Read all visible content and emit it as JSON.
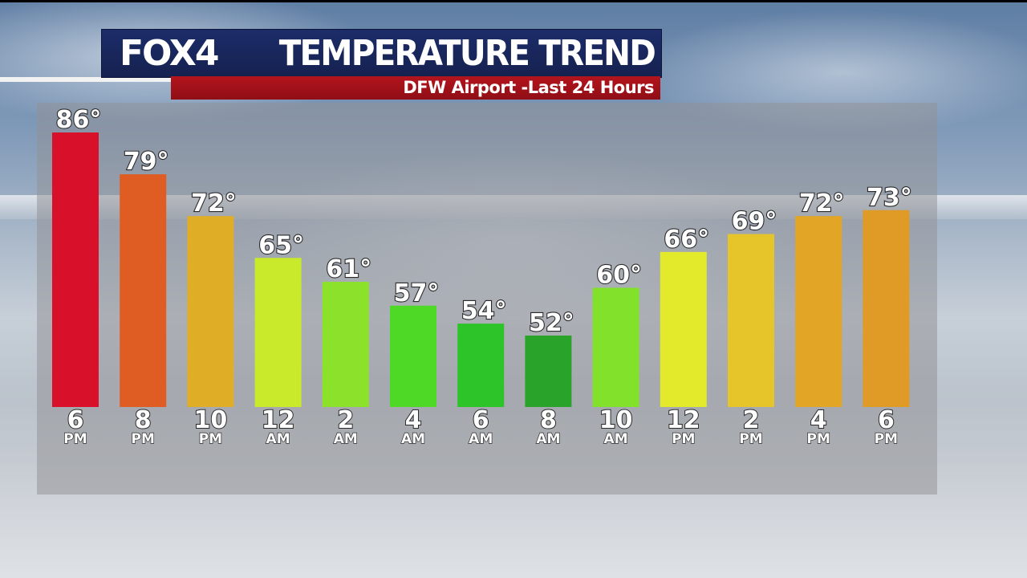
{
  "header": {
    "logo": "FOX4",
    "title": "TEMPERATURE TREND",
    "subtitle": "DFW Airport -Last 24 Hours"
  },
  "colors": {
    "title_bg": "#17235a",
    "subtitle_bg": "#a3111a"
  },
  "chart_data": {
    "type": "bar",
    "title": "TEMPERATURE TREND",
    "subtitle": "DFW Airport -Last 24 Hours",
    "unit": "°",
    "categories": [
      {
        "hour": "6",
        "ampm": "PM"
      },
      {
        "hour": "8",
        "ampm": "PM"
      },
      {
        "hour": "10",
        "ampm": "PM"
      },
      {
        "hour": "12",
        "ampm": "AM"
      },
      {
        "hour": "2",
        "ampm": "AM"
      },
      {
        "hour": "4",
        "ampm": "AM"
      },
      {
        "hour": "6",
        "ampm": "AM"
      },
      {
        "hour": "8",
        "ampm": "AM"
      },
      {
        "hour": "10",
        "ampm": "AM"
      },
      {
        "hour": "12",
        "ampm": "PM"
      },
      {
        "hour": "2",
        "ampm": "PM"
      },
      {
        "hour": "4",
        "ampm": "PM"
      },
      {
        "hour": "6",
        "ampm": "PM"
      }
    ],
    "values": [
      86,
      79,
      72,
      65,
      61,
      57,
      54,
      52,
      60,
      66,
      69,
      72,
      73
    ],
    "value_labels": [
      "86°",
      "79°",
      "72°",
      "65°",
      "61°",
      "57°",
      "54°",
      "52°",
      "60°",
      "66°",
      "69°",
      "72°",
      "73°"
    ],
    "bar_colors": [
      "#d8102a",
      "#df5d22",
      "#e0ad26",
      "#c9ea2b",
      "#8ce22b",
      "#4fd927",
      "#2dc42a",
      "#29a329",
      "#82e22b",
      "#e3e92b",
      "#e6c52a",
      "#e2a526",
      "#e09a26"
    ],
    "grid": false,
    "legend": "none"
  }
}
